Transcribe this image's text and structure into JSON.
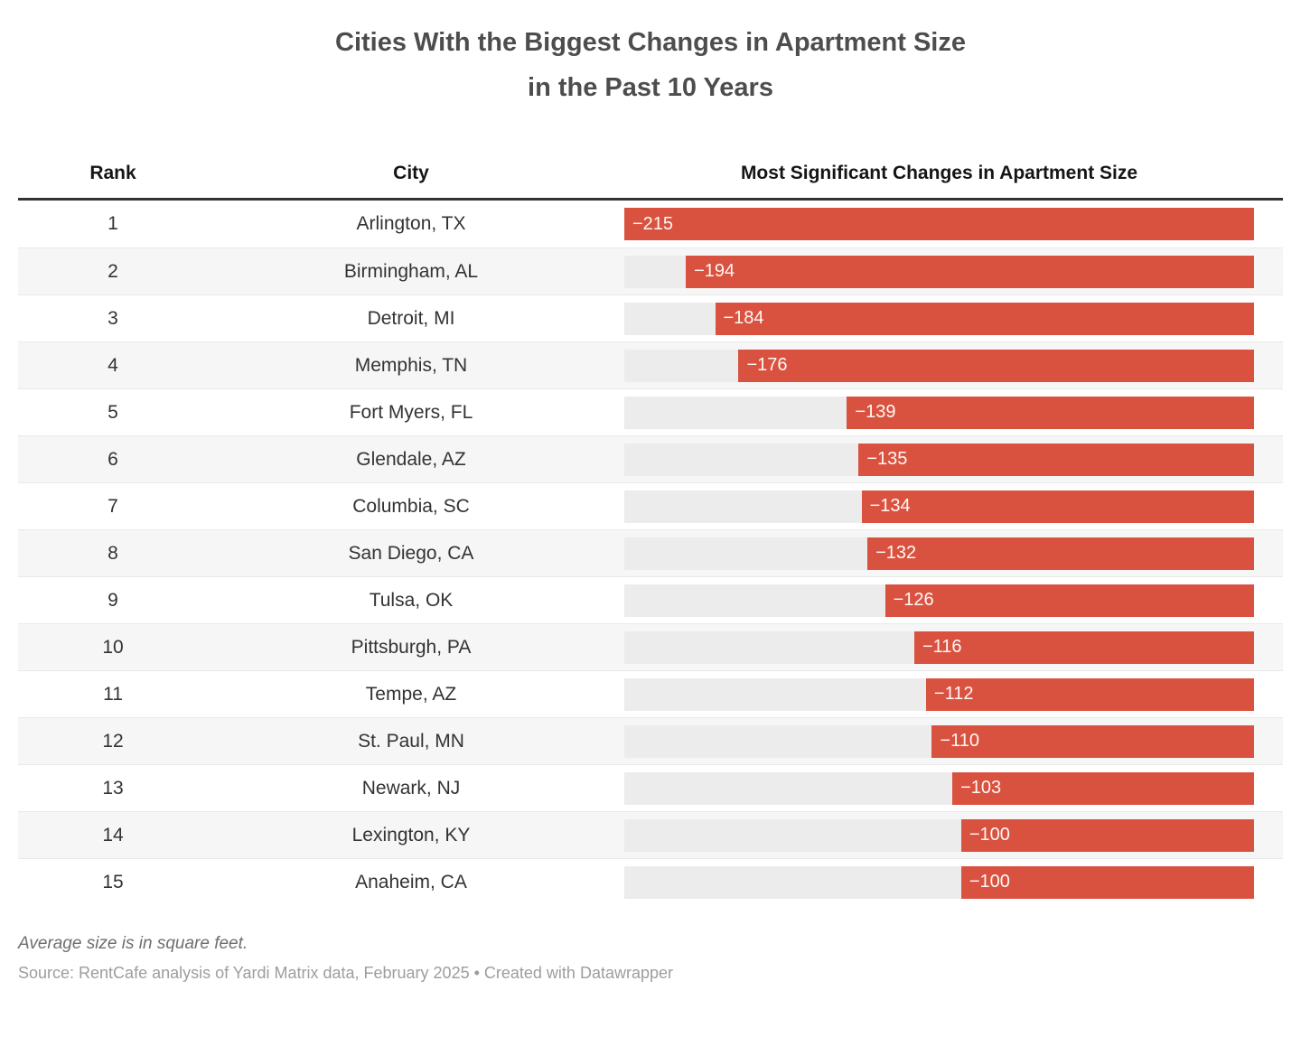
{
  "title": {
    "line1": "Cities With the Biggest Changes in Apartment Size",
    "line2": "in the Past 10 Years"
  },
  "table": {
    "headers": {
      "rank": "Rank",
      "city": "City",
      "change": "Most Significant Changes in Apartment Size"
    },
    "rows": [
      {
        "rank": "1",
        "city": "Arlington, TX",
        "value": -215,
        "label": "−215"
      },
      {
        "rank": "2",
        "city": "Birmingham, AL",
        "value": -194,
        "label": "−194"
      },
      {
        "rank": "3",
        "city": "Detroit, MI",
        "value": -184,
        "label": "−184"
      },
      {
        "rank": "4",
        "city": "Memphis, TN",
        "value": -176,
        "label": "−176"
      },
      {
        "rank": "5",
        "city": "Fort Myers, FL",
        "value": -139,
        "label": "−139"
      },
      {
        "rank": "6",
        "city": "Glendale, AZ",
        "value": -135,
        "label": "−135"
      },
      {
        "rank": "7",
        "city": "Columbia, SC",
        "value": -134,
        "label": "−134"
      },
      {
        "rank": "8",
        "city": "San Diego, CA",
        "value": -132,
        "label": "−132"
      },
      {
        "rank": "9",
        "city": "Tulsa, OK",
        "value": -126,
        "label": "−126"
      },
      {
        "rank": "10",
        "city": "Pittsburgh, PA",
        "value": -116,
        "label": "−116"
      },
      {
        "rank": "11",
        "city": "Tempe, AZ",
        "value": -112,
        "label": "−112"
      },
      {
        "rank": "12",
        "city": "St. Paul, MN",
        "value": -110,
        "label": "−110"
      },
      {
        "rank": "13",
        "city": "Newark, NJ",
        "value": -103,
        "label": "−103"
      },
      {
        "rank": "14",
        "city": "Lexington, KY",
        "value": -100,
        "label": "−100"
      },
      {
        "rank": "15",
        "city": "Anaheim, CA",
        "value": -100,
        "label": "−100"
      }
    ]
  },
  "footer": {
    "note": "Average size is in square feet.",
    "source": "Source: RentCafe analysis of Yardi Matrix data, February 2025 • Created with Datawrapper"
  },
  "colors": {
    "bar": "#d9523f",
    "track": "#ececec",
    "row_alt": "#f6f6f6",
    "header_border": "#333333"
  },
  "chart_data": {
    "type": "bar",
    "orientation": "horizontal",
    "title": "Cities With the Biggest Changes in Apartment Size in the Past 10 Years",
    "categories": [
      "Arlington, TX",
      "Birmingham, AL",
      "Detroit, MI",
      "Memphis, TN",
      "Fort Myers, FL",
      "Glendale, AZ",
      "Columbia, SC",
      "San Diego, CA",
      "Tulsa, OK",
      "Pittsburgh, PA",
      "Tempe, AZ",
      "St. Paul, MN",
      "Newark, NJ",
      "Lexington, KY",
      "Anaheim, CA"
    ],
    "values": [
      -215,
      -194,
      -184,
      -176,
      -139,
      -135,
      -134,
      -132,
      -126,
      -116,
      -112,
      -110,
      -103,
      -100,
      -100
    ],
    "value_column_label": "Most Significant Changes in Apartment Size",
    "units": "square feet",
    "xlim": [
      -215,
      0
    ],
    "xmax_abs": 215,
    "bar_anchor": "right",
    "grid": false,
    "legend": false,
    "footnote": "Average size is in square feet.",
    "source": "Source: RentCafe analysis of Yardi Matrix data, February 2025 • Created with Datawrapper"
  }
}
